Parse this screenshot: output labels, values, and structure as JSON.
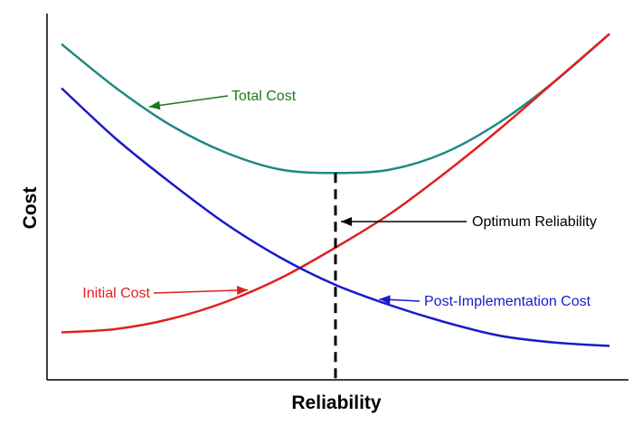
{
  "chart_data": {
    "type": "line",
    "title": "",
    "xlabel": "Reliability",
    "ylabel": "Cost",
    "xlim": [
      0,
      1
    ],
    "ylim": [
      0,
      1
    ],
    "grid": false,
    "legend": "none",
    "series": [
      {
        "name": "Total Cost",
        "color": "#1e8a82",
        "x": [
          0,
          0.1,
          0.2,
          0.3,
          0.4,
          0.5,
          0.6,
          0.7,
          0.8,
          0.9,
          1.0
        ],
        "y": [
          0.95,
          0.82,
          0.71,
          0.63,
          0.58,
          0.57,
          0.58,
          0.63,
          0.72,
          0.84,
          0.98
        ]
      },
      {
        "name": "Initial Cost",
        "color": "#e02020",
        "x": [
          0,
          0.1,
          0.2,
          0.3,
          0.4,
          0.5,
          0.6,
          0.7,
          0.8,
          0.9,
          1.0
        ],
        "y": [
          0.1,
          0.11,
          0.14,
          0.19,
          0.26,
          0.35,
          0.45,
          0.57,
          0.7,
          0.84,
          0.98
        ]
      },
      {
        "name": "Post-Implementation Cost",
        "color": "#1a1acc",
        "x": [
          0,
          0.1,
          0.2,
          0.3,
          0.4,
          0.5,
          0.6,
          0.7,
          0.8,
          0.9,
          1.0
        ],
        "y": [
          0.82,
          0.67,
          0.54,
          0.42,
          0.32,
          0.24,
          0.18,
          0.13,
          0.09,
          0.07,
          0.06
        ]
      }
    ],
    "optimum": {
      "x": 0.5,
      "label": "Optimum Reliability"
    },
    "annotations": [
      {
        "text": "Total Cost",
        "color": "#1a7a1a",
        "series_index": 0,
        "point_x": 0.15
      },
      {
        "text": "Initial Cost",
        "color": "#e02020",
        "series_index": 1,
        "point_x": 0.35
      },
      {
        "text": "Post-Implementation Cost",
        "color": "#1a1acc",
        "series_index": 2,
        "point_x": 0.57
      },
      {
        "text": "Optimum Reliability",
        "color": "#000000",
        "series_index": -1,
        "point_x": 0.5
      }
    ]
  }
}
